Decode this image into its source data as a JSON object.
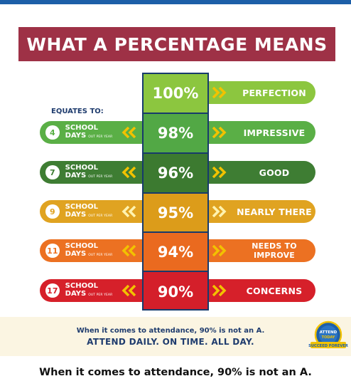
{
  "title": "WHAT A PERCENTAGE MEANS",
  "equates_label": "EQUATES TO:",
  "school_word": "SCHOOL",
  "days_word": "DAYS",
  "per_year": "OUT PER YEAR",
  "rows": [
    {
      "pct": "100%",
      "label": "PERFECTION",
      "days": null,
      "color": "#8cc63f",
      "cell_color": "#8cc63f"
    },
    {
      "pct": "98%",
      "label": "IMPRESSIVE",
      "days": "4",
      "color": "#5aaf46",
      "cell_color": "#52a845"
    },
    {
      "pct": "96%",
      "label": "GOOD",
      "days": "7",
      "color": "#3e7d33",
      "cell_color": "#3c7a30"
    },
    {
      "pct": "95%",
      "label": "NEARLY THERE",
      "days": "9",
      "color": "#e0a321",
      "cell_color": "#dc9c1a"
    },
    {
      "pct": "94%",
      "label": "NEEDS TO IMPROVE",
      "days": "11",
      "color": "#ec7122",
      "cell_color": "#ea6a1f"
    },
    {
      "pct": "90%",
      "label": "CONCERNS",
      "days": "17",
      "color": "#d6202a",
      "cell_color": "#d41f2a"
    }
  ],
  "bottom": {
    "line1": "When it comes to attendance, 90% is not an A.",
    "line2": "ATTEND DAILY. ON TIME. ALL DAY."
  },
  "logo_text": {
    "top": "ATTEND",
    "mid": "TODAY",
    "bottom": "SUCCEED FOREVER"
  },
  "caption": "When it comes to attendance, 90% is not an A.",
  "colors": {
    "banner": "#9e3146",
    "navy": "#1f3c6e",
    "chevron": "#f2c200",
    "topbar": "#1d5fa8"
  }
}
